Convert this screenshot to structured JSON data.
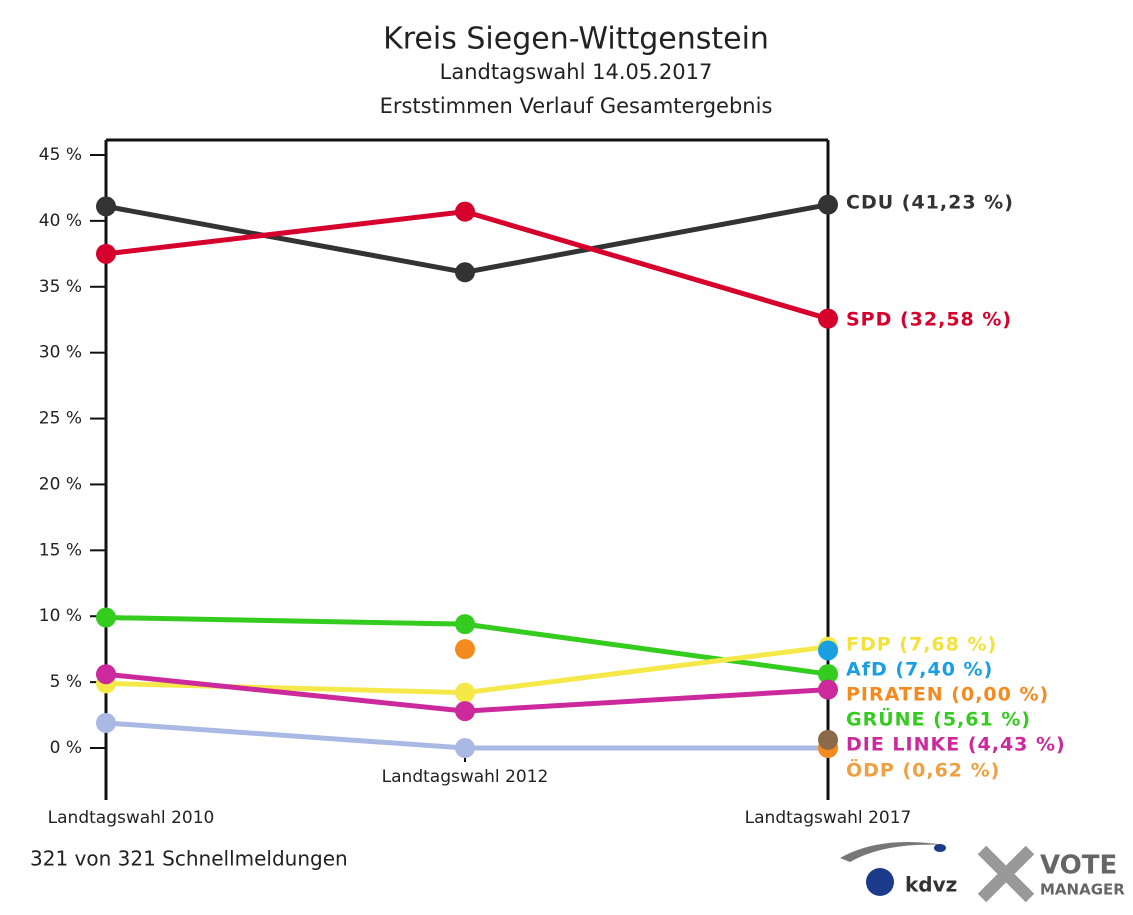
{
  "chart_data": {
    "type": "line",
    "title": "Kreis Siegen-Wittgenstein",
    "subtitle": "Landtagswahl 14.05.2017",
    "subtitle2": "Erststimmen Verlauf Gesamtergebnis",
    "categories": [
      "Landtagswahl 2010",
      "Landtagswahl 2012",
      "Landtagswahl 2017"
    ],
    "ylim": [
      0,
      45
    ],
    "yticks": [
      {
        "value": 0,
        "label": "0 %"
      },
      {
        "value": 5,
        "label": "5 %"
      },
      {
        "value": 10,
        "label": "10 %"
      },
      {
        "value": 15,
        "label": "15 %"
      },
      {
        "value": 20,
        "label": "20 %"
      },
      {
        "value": 25,
        "label": "25 %"
      },
      {
        "value": 30,
        "label": "30 %"
      },
      {
        "value": 35,
        "label": "35 %"
      },
      {
        "value": 40,
        "label": "40 %"
      },
      {
        "value": 45,
        "label": "45 %"
      }
    ],
    "series": [
      {
        "color": "#a9b9e3",
        "values": [
          1.9,
          0,
          0
        ]
      },
      {
        "name": "CDU",
        "label": "CDU (41,23 %)",
        "color": "#333333",
        "values": [
          41.1,
          36.1,
          41.23
        ]
      },
      {
        "name": "SPD",
        "label": "SPD (32,58 %)",
        "color": "#d6002c",
        "values": [
          37.5,
          40.7,
          32.58
        ]
      },
      {
        "name": "GRÜNE",
        "label": "GRÜNE (5,61 %)",
        "color": "#34cc1e",
        "values": [
          9.9,
          9.4,
          5.61
        ]
      },
      {
        "name": "FDP",
        "label": "FDP (7,68 %)",
        "label_color": "#f2e23a",
        "color": "#f5e94a",
        "values": [
          4.9,
          4.2,
          7.68
        ]
      },
      {
        "name": "DIE LINKE",
        "label": "DIE LINKE (4,43 %)",
        "color": "#cc2a9c",
        "values": [
          5.6,
          2.8,
          4.43
        ]
      },
      {
        "name": "PIRATEN",
        "label": "PIRATEN (0,00 %)",
        "color": "#f58a1f",
        "lines": false,
        "values": [
          null,
          7.5,
          0.0
        ]
      },
      {
        "name": "AfD",
        "label": "AfD (7,40 %)",
        "color": "#1a9fe3",
        "values": [
          null,
          null,
          7.4
        ]
      },
      {
        "name": "ÖDP",
        "label": "ÖDP (0,62 %)",
        "label_color": "#f0a040",
        "color": "#8a6a4a",
        "values": [
          null,
          null,
          0.62
        ]
      }
    ],
    "legend_order": [
      1,
      2,
      4,
      7,
      6,
      3,
      5,
      8
    ],
    "footer": "321 von 321 Schnellmeldungen",
    "logo1": "kdvz",
    "logo2a": "VOTE",
    "logo2b": "MANAGER"
  }
}
